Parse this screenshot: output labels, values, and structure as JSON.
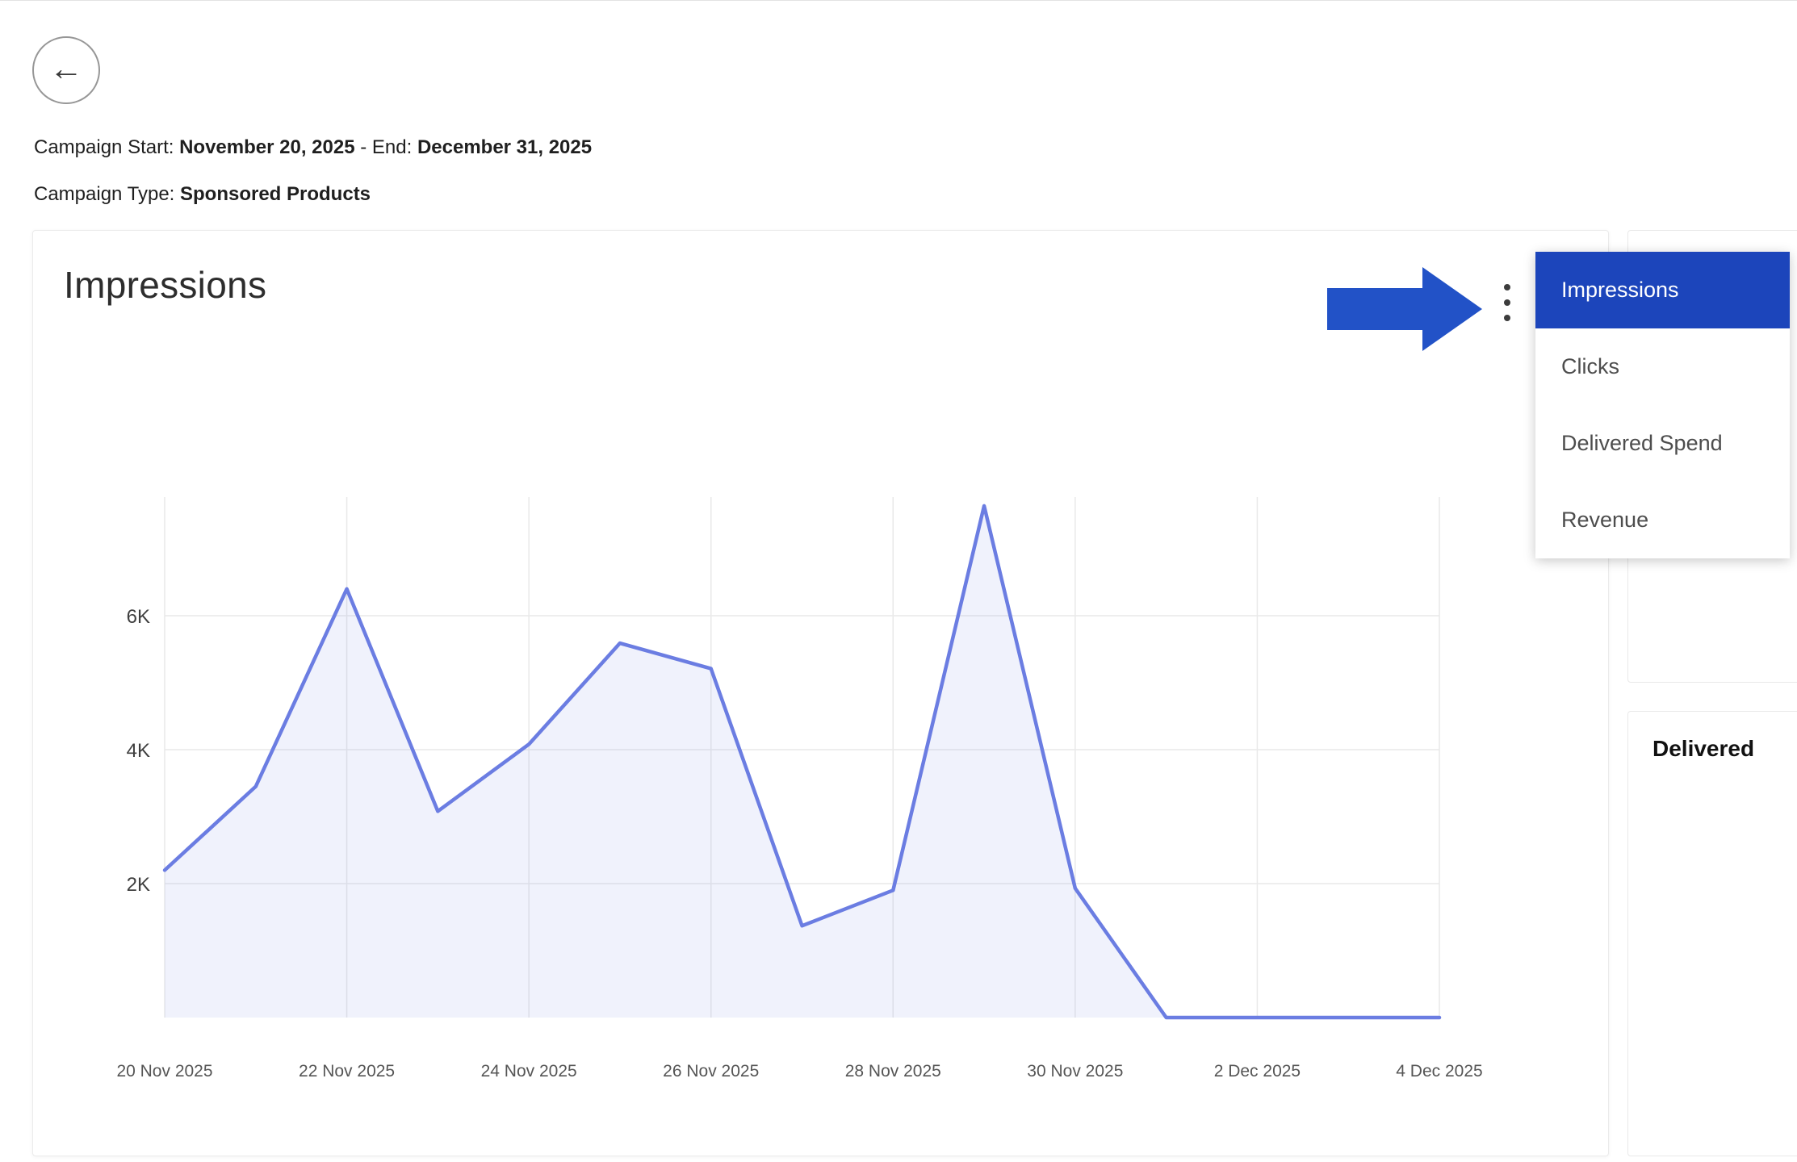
{
  "icons": {
    "back_arrow": "←",
    "more_options": "kebab-vertical-dots"
  },
  "header": {
    "campaign_start_label": "Campaign Start:",
    "campaign_start_value": "November 20, 2025",
    "campaign_end_label": "- End:",
    "campaign_end_value": "December 31, 2025",
    "campaign_type_label": "Campaign Type:",
    "campaign_type_value": "Sponsored Products"
  },
  "chart_card": {
    "title": "Impressions"
  },
  "menu": {
    "items": [
      {
        "label": "Impressions",
        "selected": true
      },
      {
        "label": "Clicks",
        "selected": false
      },
      {
        "label": "Delivered Spend",
        "selected": false
      },
      {
        "label": "Revenue",
        "selected": false
      }
    ]
  },
  "right_panel": {
    "bottom_card_title": "Delivered"
  },
  "colors": {
    "menu_selected_bg": "#1c45bb",
    "arrow_blue": "#2252c7",
    "line_blue": "#6b7de2",
    "grid_gray": "#e9e9e9"
  },
  "chart_data": {
    "type": "area",
    "title": "Impressions",
    "x": [
      "20 Nov 2025",
      "21 Nov 2025",
      "22 Nov 2025",
      "23 Nov 2025",
      "24 Nov 2025",
      "25 Nov 2025",
      "26 Nov 2025",
      "27 Nov 2025",
      "28 Nov 2025",
      "29 Nov 2025",
      "30 Nov 2025",
      "1 Dec 2025",
      "2 Dec 2025",
      "3 Dec 2025",
      "4 Dec 2025"
    ],
    "values": [
      2200,
      3450,
      6400,
      3080,
      4080,
      5590,
      5210,
      1370,
      1900,
      7640,
      1930,
      0,
      0,
      0,
      0
    ],
    "x_tick_labels": [
      "20 Nov 2025",
      "22 Nov 2025",
      "24 Nov 2025",
      "26 Nov 2025",
      "28 Nov 2025",
      "30 Nov 2025",
      "2 Dec 2025",
      "4 Dec 2025"
    ],
    "y_ticks": [
      {
        "value": 2000,
        "label": "2K"
      },
      {
        "value": 4000,
        "label": "4K"
      },
      {
        "value": 6000,
        "label": "6K"
      }
    ],
    "ylim": [
      0,
      8000
    ],
    "grid": true,
    "legend": false,
    "line_color": "#6b7de2",
    "fill_color": "rgba(104,124,226,0.10)"
  }
}
